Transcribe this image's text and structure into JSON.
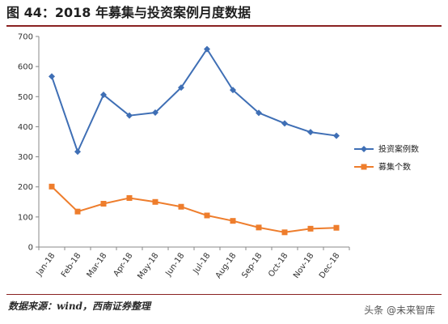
{
  "header": {
    "figure_title": "图 44：2018 年募集与投资案例月度数据"
  },
  "footer": {
    "source": "数据来源：wind，西南证券整理",
    "watermark": "头条 @未来智库"
  },
  "colors": {
    "series_blue": "#3f6fb5",
    "series_orange": "#ee7d2c",
    "rule": "#8a2222",
    "axis": "#888888"
  },
  "chart_data": {
    "type": "line",
    "title": "",
    "xlabel": "",
    "ylabel": "",
    "ylim": [
      0,
      700
    ],
    "yticks": [
      0,
      100,
      200,
      300,
      400,
      500,
      600,
      700
    ],
    "grid": false,
    "legend_position": "right",
    "categories": [
      "Jan-18",
      "Feb-18",
      "Mar-18",
      "Apr-18",
      "May-18",
      "Jun-18",
      "Jul-18",
      "Aug-18",
      "Sep-18",
      "Oct-18",
      "Nov-18",
      "Dec-18"
    ],
    "series": [
      {
        "name": "投资案例数",
        "marker": "diamond",
        "color": "#3f6fb5",
        "values": [
          567,
          317,
          506,
          437,
          447,
          530,
          658,
          522,
          446,
          411,
          382,
          370
        ]
      },
      {
        "name": "募集个数",
        "marker": "square",
        "color": "#ee7d2c",
        "values": [
          201,
          118,
          144,
          163,
          150,
          134,
          105,
          87,
          65,
          49,
          61,
          64
        ]
      }
    ]
  }
}
